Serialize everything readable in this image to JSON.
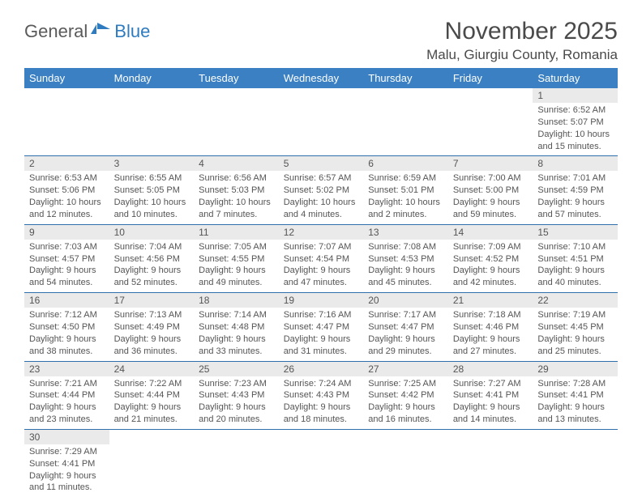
{
  "logo": {
    "general": "General",
    "blue": "Blue"
  },
  "header": {
    "title": "November 2025",
    "location": "Malu, Giurgiu County, Romania"
  },
  "colors": {
    "header_bg": "#3a80c3",
    "header_fg": "#ffffff",
    "daynum_bg": "#eaeaea",
    "day_fg": "#555555",
    "row_border": "#2f6fab"
  },
  "weekdays": [
    "Sunday",
    "Monday",
    "Tuesday",
    "Wednesday",
    "Thursday",
    "Friday",
    "Saturday"
  ],
  "weeks": [
    [
      null,
      null,
      null,
      null,
      null,
      null,
      {
        "n": "1",
        "sr": "Sunrise: 6:52 AM",
        "ss": "Sunset: 5:07 PM",
        "d1": "Daylight: 10 hours",
        "d2": "and 15 minutes."
      }
    ],
    [
      {
        "n": "2",
        "sr": "Sunrise: 6:53 AM",
        "ss": "Sunset: 5:06 PM",
        "d1": "Daylight: 10 hours",
        "d2": "and 12 minutes."
      },
      {
        "n": "3",
        "sr": "Sunrise: 6:55 AM",
        "ss": "Sunset: 5:05 PM",
        "d1": "Daylight: 10 hours",
        "d2": "and 10 minutes."
      },
      {
        "n": "4",
        "sr": "Sunrise: 6:56 AM",
        "ss": "Sunset: 5:03 PM",
        "d1": "Daylight: 10 hours",
        "d2": "and 7 minutes."
      },
      {
        "n": "5",
        "sr": "Sunrise: 6:57 AM",
        "ss": "Sunset: 5:02 PM",
        "d1": "Daylight: 10 hours",
        "d2": "and 4 minutes."
      },
      {
        "n": "6",
        "sr": "Sunrise: 6:59 AM",
        "ss": "Sunset: 5:01 PM",
        "d1": "Daylight: 10 hours",
        "d2": "and 2 minutes."
      },
      {
        "n": "7",
        "sr": "Sunrise: 7:00 AM",
        "ss": "Sunset: 5:00 PM",
        "d1": "Daylight: 9 hours",
        "d2": "and 59 minutes."
      },
      {
        "n": "8",
        "sr": "Sunrise: 7:01 AM",
        "ss": "Sunset: 4:59 PM",
        "d1": "Daylight: 9 hours",
        "d2": "and 57 minutes."
      }
    ],
    [
      {
        "n": "9",
        "sr": "Sunrise: 7:03 AM",
        "ss": "Sunset: 4:57 PM",
        "d1": "Daylight: 9 hours",
        "d2": "and 54 minutes."
      },
      {
        "n": "10",
        "sr": "Sunrise: 7:04 AM",
        "ss": "Sunset: 4:56 PM",
        "d1": "Daylight: 9 hours",
        "d2": "and 52 minutes."
      },
      {
        "n": "11",
        "sr": "Sunrise: 7:05 AM",
        "ss": "Sunset: 4:55 PM",
        "d1": "Daylight: 9 hours",
        "d2": "and 49 minutes."
      },
      {
        "n": "12",
        "sr": "Sunrise: 7:07 AM",
        "ss": "Sunset: 4:54 PM",
        "d1": "Daylight: 9 hours",
        "d2": "and 47 minutes."
      },
      {
        "n": "13",
        "sr": "Sunrise: 7:08 AM",
        "ss": "Sunset: 4:53 PM",
        "d1": "Daylight: 9 hours",
        "d2": "and 45 minutes."
      },
      {
        "n": "14",
        "sr": "Sunrise: 7:09 AM",
        "ss": "Sunset: 4:52 PM",
        "d1": "Daylight: 9 hours",
        "d2": "and 42 minutes."
      },
      {
        "n": "15",
        "sr": "Sunrise: 7:10 AM",
        "ss": "Sunset: 4:51 PM",
        "d1": "Daylight: 9 hours",
        "d2": "and 40 minutes."
      }
    ],
    [
      {
        "n": "16",
        "sr": "Sunrise: 7:12 AM",
        "ss": "Sunset: 4:50 PM",
        "d1": "Daylight: 9 hours",
        "d2": "and 38 minutes."
      },
      {
        "n": "17",
        "sr": "Sunrise: 7:13 AM",
        "ss": "Sunset: 4:49 PM",
        "d1": "Daylight: 9 hours",
        "d2": "and 36 minutes."
      },
      {
        "n": "18",
        "sr": "Sunrise: 7:14 AM",
        "ss": "Sunset: 4:48 PM",
        "d1": "Daylight: 9 hours",
        "d2": "and 33 minutes."
      },
      {
        "n": "19",
        "sr": "Sunrise: 7:16 AM",
        "ss": "Sunset: 4:47 PM",
        "d1": "Daylight: 9 hours",
        "d2": "and 31 minutes."
      },
      {
        "n": "20",
        "sr": "Sunrise: 7:17 AM",
        "ss": "Sunset: 4:47 PM",
        "d1": "Daylight: 9 hours",
        "d2": "and 29 minutes."
      },
      {
        "n": "21",
        "sr": "Sunrise: 7:18 AM",
        "ss": "Sunset: 4:46 PM",
        "d1": "Daylight: 9 hours",
        "d2": "and 27 minutes."
      },
      {
        "n": "22",
        "sr": "Sunrise: 7:19 AM",
        "ss": "Sunset: 4:45 PM",
        "d1": "Daylight: 9 hours",
        "d2": "and 25 minutes."
      }
    ],
    [
      {
        "n": "23",
        "sr": "Sunrise: 7:21 AM",
        "ss": "Sunset: 4:44 PM",
        "d1": "Daylight: 9 hours",
        "d2": "and 23 minutes."
      },
      {
        "n": "24",
        "sr": "Sunrise: 7:22 AM",
        "ss": "Sunset: 4:44 PM",
        "d1": "Daylight: 9 hours",
        "d2": "and 21 minutes."
      },
      {
        "n": "25",
        "sr": "Sunrise: 7:23 AM",
        "ss": "Sunset: 4:43 PM",
        "d1": "Daylight: 9 hours",
        "d2": "and 20 minutes."
      },
      {
        "n": "26",
        "sr": "Sunrise: 7:24 AM",
        "ss": "Sunset: 4:43 PM",
        "d1": "Daylight: 9 hours",
        "d2": "and 18 minutes."
      },
      {
        "n": "27",
        "sr": "Sunrise: 7:25 AM",
        "ss": "Sunset: 4:42 PM",
        "d1": "Daylight: 9 hours",
        "d2": "and 16 minutes."
      },
      {
        "n": "28",
        "sr": "Sunrise: 7:27 AM",
        "ss": "Sunset: 4:41 PM",
        "d1": "Daylight: 9 hours",
        "d2": "and 14 minutes."
      },
      {
        "n": "29",
        "sr": "Sunrise: 7:28 AM",
        "ss": "Sunset: 4:41 PM",
        "d1": "Daylight: 9 hours",
        "d2": "and 13 minutes."
      }
    ],
    [
      {
        "n": "30",
        "sr": "Sunrise: 7:29 AM",
        "ss": "Sunset: 4:41 PM",
        "d1": "Daylight: 9 hours",
        "d2": "and 11 minutes."
      },
      null,
      null,
      null,
      null,
      null,
      null
    ]
  ]
}
